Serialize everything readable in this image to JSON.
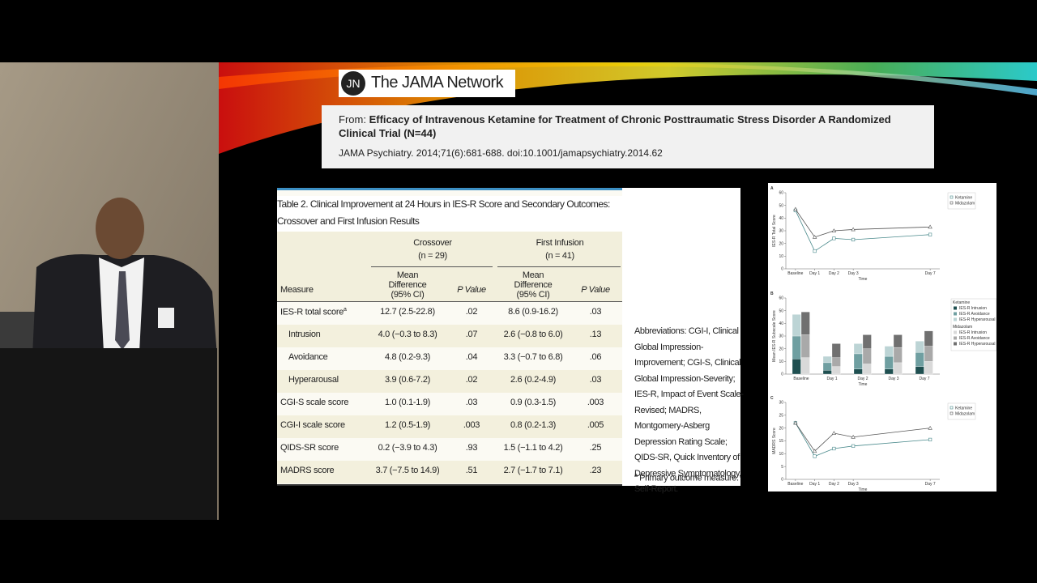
{
  "header": {
    "logo_mark": "JN",
    "logo_text": "The JAMA Network"
  },
  "citation": {
    "from_label": "From:",
    "title": "Efficacy of Intravenous Ketamine for Treatment of Chronic Posttraumatic Stress Disorder A Randomized Clinical Trial (N=44)",
    "source": "JAMA Psychiatry. 2014;71(6):681-688. doi:10.1001/jamapsychiatry.2014.62"
  },
  "table": {
    "title": "Table 2. Clinical Improvement at 24 Hours in IES-R Score and Secondary Outcomes:",
    "subtitle": "Crossover and First Infusion Results",
    "groups": [
      {
        "name": "Crossover",
        "n": "(n = 29)"
      },
      {
        "name": "First Infusion",
        "n": "(n = 41)"
      }
    ],
    "columns": [
      "Measure",
      "Mean Difference (95% CI)",
      "P Value",
      "Mean Difference (95% CI)",
      "P Value"
    ],
    "first_row_note": "a",
    "rows": [
      [
        "IES-R total score",
        "12.7 (2.5-22.8)",
        ".02",
        "8.6 (0.9-16.2)",
        ".03"
      ],
      [
        "Intrusion",
        "4.0 (−0.3 to 8.3)",
        ".07",
        "2.6 (−0.8 to 6.0)",
        ".13"
      ],
      [
        "Avoidance",
        "4.8 (0.2-9.3)",
        ".04",
        "3.3 (−0.7 to 6.8)",
        ".06"
      ],
      [
        "Hyperarousal",
        "3.9 (0.6-7.2)",
        ".02",
        "2.6 (0.2-4.9)",
        ".03"
      ],
      [
        "CGI-S scale score",
        "1.0 (0.1-1.9)",
        ".03",
        "0.9 (0.3-1.5)",
        ".003"
      ],
      [
        "CGI-I scale score",
        "1.2 (0.5-1.9)",
        ".003",
        "0.8 (0.2-1.3)",
        ".005"
      ],
      [
        "QIDS-SR score",
        "0.2 (−3.9 to 4.3)",
        ".93",
        "1.5 (−1.1 to 4.2)",
        ".25"
      ],
      [
        "MADRS score",
        "3.7 (−7.5 to 14.9)",
        ".51",
        "2.7 (−1.7 to 7.1)",
        ".23"
      ]
    ]
  },
  "notes": {
    "abbreviations": "Abbreviations: CGI-I, Clinical Global Impression-Improvement; CGI-S, Clinical Global Impression-Severity; IES-R, Impact of Event Scale-Revised; MADRS, Montgomery-Asberg Depression Rating Scale; QIDS-SR, Quick Inventory of Depressive Symptomatology, Self-Report.",
    "footnote_mark": "a",
    "footnote": "Primary outcome measure."
  },
  "chart_data": [
    {
      "type": "line",
      "panel": "A",
      "y_label": "IES-R Total Score",
      "x_label": "Time",
      "x": [
        0,
        1,
        2,
        3,
        7
      ],
      "xlim": [
        -0.5,
        7.5
      ],
      "xticks": [
        {
          "value": 0,
          "label": "Baseline"
        },
        {
          "value": 1,
          "label": "Day 1"
        },
        {
          "value": 2,
          "label": "Day 2"
        },
        {
          "value": 3,
          "label": "Day 3"
        },
        {
          "value": 7,
          "label": "Day 7"
        }
      ],
      "ylim": [
        0,
        60
      ],
      "yticks": [
        0,
        10,
        20,
        30,
        40,
        50,
        60
      ],
      "series": [
        {
          "name": "Ketamine",
          "color": "#4a8a8c",
          "marker": "square",
          "values": [
            46,
            14,
            24,
            23,
            27
          ]
        },
        {
          "name": "Midazolam",
          "color": "#555555",
          "marker": "triangle",
          "values": [
            47,
            25,
            30,
            31,
            33
          ]
        }
      ]
    },
    {
      "type": "bar",
      "panel": "B",
      "y_label": "Mean IES-R Subscale Score",
      "x_label": "Time",
      "categories": [
        "Baseline",
        "Day 1",
        "Day 2",
        "Day 3",
        "Day 7"
      ],
      "ylim": [
        0,
        60
      ],
      "yticks": [
        0,
        10,
        20,
        30,
        40,
        50,
        60
      ],
      "legend_groups": [
        "Ketamine",
        "Midazolam"
      ],
      "series": [
        {
          "name": "IES-R Intrusion",
          "group": 0,
          "color": "#1f4f50",
          "values": [
            12,
            3,
            4,
            4,
            6
          ]
        },
        {
          "name": "IES-R Avoidance",
          "group": 0,
          "color": "#6f9fa1",
          "values": [
            18,
            6,
            12,
            10,
            11
          ]
        },
        {
          "name": "IES-R Hyperarousal",
          "group": 0,
          "color": "#bcd4d5",
          "values": [
            17,
            5,
            8,
            8,
            9
          ]
        },
        {
          "name": "IES-R Intrusion",
          "group": 1,
          "color": "#d9d9d9",
          "values": [
            13,
            6,
            8,
            9,
            10
          ]
        },
        {
          "name": "IES-R Avoidance",
          "group": 1,
          "color": "#a9a9a9",
          "values": [
            18,
            7,
            12,
            12,
            12
          ]
        },
        {
          "name": "IES-R Hyperarousal",
          "group": 1,
          "color": "#707070",
          "values": [
            18,
            11,
            11,
            10,
            12
          ]
        }
      ]
    },
    {
      "type": "line",
      "panel": "C",
      "y_label": "MADRS Score",
      "x_label": "Time",
      "x": [
        0,
        1,
        2,
        3,
        7
      ],
      "xlim": [
        -0.5,
        7.5
      ],
      "xticks": [
        {
          "value": 0,
          "label": "Baseline"
        },
        {
          "value": 1,
          "label": "Day 1"
        },
        {
          "value": 2,
          "label": "Day 2"
        },
        {
          "value": 3,
          "label": "Day 3"
        },
        {
          "value": 7,
          "label": "Day 7"
        }
      ],
      "ylim": [
        0,
        30
      ],
      "yticks": [
        0,
        5,
        10,
        15,
        20,
        25,
        30
      ],
      "series": [
        {
          "name": "Ketamine",
          "color": "#4a8a8c",
          "marker": "square",
          "values": [
            22,
            9,
            12,
            13,
            15.5
          ]
        },
        {
          "name": "Midazolam",
          "color": "#555555",
          "marker": "triangle",
          "values": [
            22,
            11,
            18,
            16.5,
            20
          ]
        }
      ]
    }
  ]
}
